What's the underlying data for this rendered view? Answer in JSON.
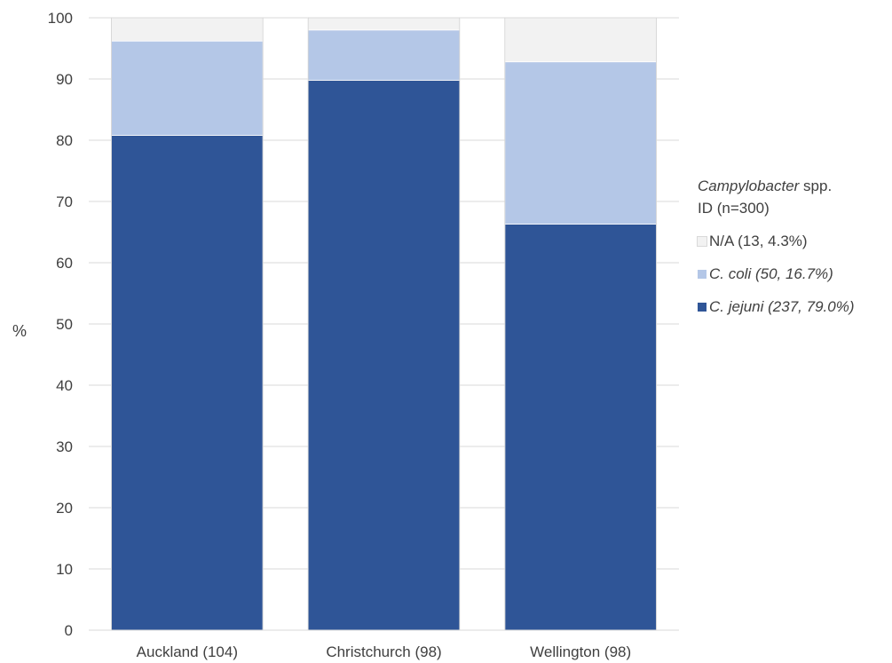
{
  "chart_data": {
    "type": "bar",
    "stacked": true,
    "categories": [
      "Auckland (104)",
      "Christchurch (98)",
      "Wellington (98)"
    ],
    "series": [
      {
        "name": "C. jejuni (237, 79.0%)",
        "values": [
          80.8,
          89.8,
          66.3
        ],
        "color": "#2f5597"
      },
      {
        "name": "C. coli (50, 16.7%)",
        "values": [
          15.4,
          8.2,
          26.5
        ],
        "color": "#b4c7e7"
      },
      {
        "name": "N/A (13, 4.3%)",
        "values": [
          3.8,
          2.0,
          7.2
        ],
        "color": "#f2f2f2"
      }
    ],
    "ylabel": "%",
    "ylim": [
      0,
      100
    ],
    "yticks": [
      0,
      10,
      20,
      30,
      40,
      50,
      60,
      70,
      80,
      90,
      100
    ],
    "grid": true,
    "legend": {
      "position": "right",
      "title_italic": "Campylobacter",
      "title_rest": " spp.",
      "title_line2": "ID (n=300)",
      "order": [
        2,
        1,
        0
      ]
    }
  }
}
